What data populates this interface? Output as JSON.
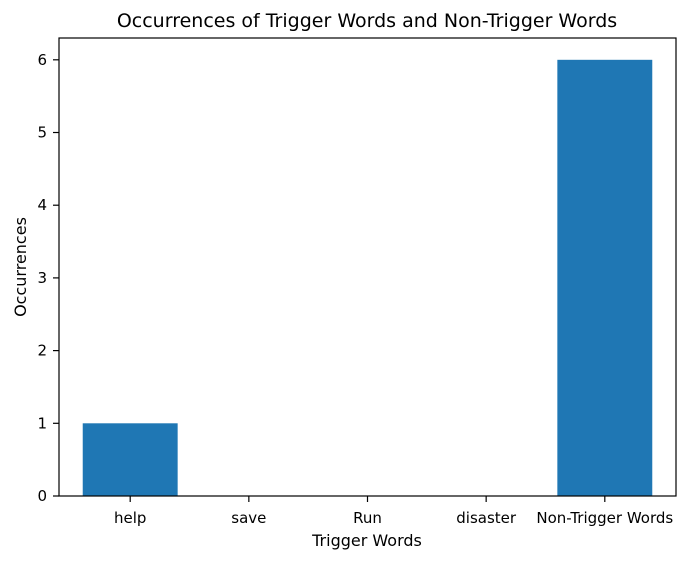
{
  "chart_data": {
    "type": "bar",
    "title": "Occurrences of Trigger Words and Non-Trigger Words",
    "xlabel": "Trigger Words",
    "ylabel": "Occurrences",
    "categories": [
      "help",
      "save",
      "Run",
      "disaster",
      "Non-Trigger Words"
    ],
    "values": [
      1,
      0,
      0,
      0,
      6
    ],
    "ylim": [
      0,
      6.3
    ],
    "yticks": [
      0,
      1,
      2,
      3,
      4,
      5,
      6
    ],
    "grid": false,
    "bar_color": "#1f77b4"
  }
}
